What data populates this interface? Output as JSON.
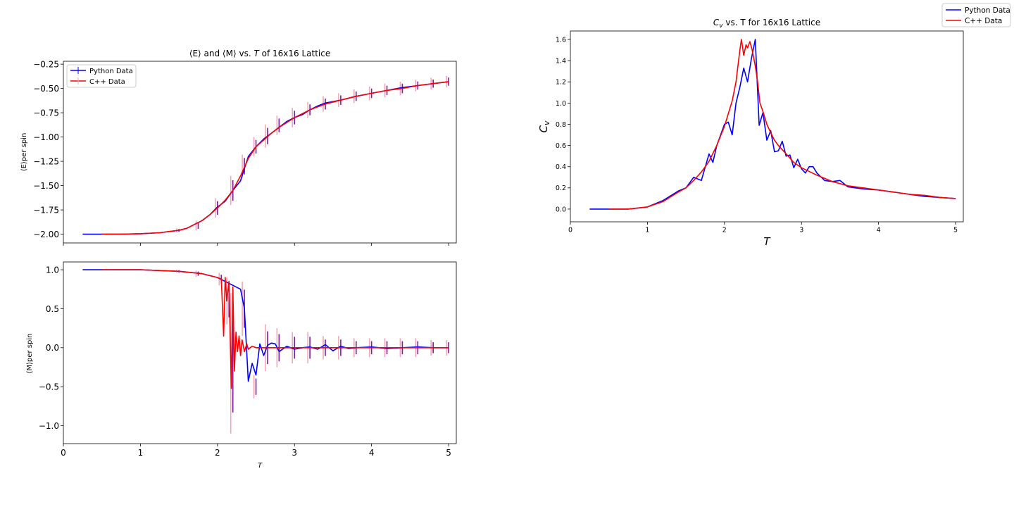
{
  "figure_legend": {
    "entries": [
      {
        "label": "Python Data",
        "color": "#0000ff"
      },
      {
        "label": "C++ Data",
        "color": "#ff0000"
      }
    ]
  },
  "chart_data": [
    {
      "id": "energy",
      "type": "line",
      "title_prefix": "⟨E⟩ and ⟨M⟩ vs. ",
      "title_italic": "T",
      "title_suffix": " of 16x16 Lattice",
      "xlabel": "",
      "ylabel": "⟨E⟩per spin",
      "xlim": [
        0,
        5.1
      ],
      "ylim": [
        -2.09,
        -0.22
      ],
      "xticks": [
        0,
        1,
        2,
        3,
        4,
        5
      ],
      "yticks": [
        -2.0,
        -1.75,
        -1.5,
        -1.25,
        -1.0,
        -0.75,
        -0.5,
        -0.25
      ],
      "ytick_labels": [
        "−2.00",
        "−1.75",
        "−1.50",
        "−1.25",
        "−1.00",
        "−0.75",
        "−0.50",
        "−0.25"
      ],
      "legend": {
        "placement": "upper-left",
        "entries": [
          "Python Data",
          "C++ Data"
        ]
      },
      "series": [
        {
          "name": "Python Data",
          "color": "#0000ff",
          "x": [
            0.25,
            0.5,
            0.75,
            1.0,
            1.25,
            1.5,
            1.6,
            1.7,
            1.8,
            1.9,
            2.0,
            2.1,
            2.2,
            2.3,
            2.4,
            2.5,
            2.6,
            2.7,
            2.8,
            2.9,
            3.0,
            3.1,
            3.2,
            3.3,
            3.4,
            3.6,
            3.8,
            4.0,
            4.2,
            4.4,
            4.6,
            4.8,
            5.0
          ],
          "y": [
            -2.0,
            -2.0,
            -2.0,
            -1.995,
            -1.985,
            -1.96,
            -1.94,
            -1.9,
            -1.86,
            -1.8,
            -1.72,
            -1.66,
            -1.55,
            -1.45,
            -1.2,
            -1.1,
            -1.02,
            -0.96,
            -0.9,
            -0.84,
            -0.8,
            -0.77,
            -0.72,
            -0.68,
            -0.65,
            -0.62,
            -0.58,
            -0.55,
            -0.52,
            -0.49,
            -0.47,
            -0.45,
            -0.43
          ]
        },
        {
          "name": "C++ Data",
          "color": "#ff0000",
          "x": [
            0.5,
            0.75,
            1.0,
            1.25,
            1.5,
            1.6,
            1.7,
            1.8,
            1.9,
            2.0,
            2.1,
            2.2,
            2.3,
            2.4,
            2.5,
            2.6,
            2.7,
            2.8,
            2.9,
            3.0,
            3.1,
            3.2,
            3.3,
            3.4,
            3.6,
            3.8,
            4.0,
            4.2,
            4.4,
            4.6,
            4.8,
            5.0
          ],
          "y": [
            -2.0,
            -2.0,
            -1.995,
            -1.985,
            -1.96,
            -1.94,
            -1.9,
            -1.86,
            -1.8,
            -1.73,
            -1.65,
            -1.55,
            -1.4,
            -1.22,
            -1.1,
            -1.03,
            -0.96,
            -0.9,
            -0.85,
            -0.8,
            -0.76,
            -0.72,
            -0.69,
            -0.66,
            -0.62,
            -0.58,
            -0.55,
            -0.52,
            -0.5,
            -0.47,
            -0.45,
            -0.43
          ]
        }
      ],
      "error_bars": {
        "x": [
          1.5,
          1.75,
          2.0,
          2.2,
          2.35,
          2.5,
          2.65,
          2.8,
          3.0,
          3.2,
          3.4,
          3.6,
          3.8,
          4.0,
          4.2,
          4.4,
          4.6,
          4.8,
          5.0
        ],
        "y": [
          -1.96,
          -1.91,
          -1.73,
          -1.55,
          -1.3,
          -1.1,
          -0.99,
          -0.88,
          -0.8,
          -0.72,
          -0.66,
          -0.62,
          -0.58,
          -0.55,
          -0.52,
          -0.5,
          -0.47,
          -0.45,
          -0.43
        ],
        "err": [
          0.02,
          0.05,
          0.1,
          0.15,
          0.12,
          0.1,
          0.12,
          0.1,
          0.1,
          0.08,
          0.08,
          0.07,
          0.07,
          0.07,
          0.07,
          0.07,
          0.06,
          0.06,
          0.06
        ]
      }
    },
    {
      "id": "magnetization",
      "type": "line",
      "title": "",
      "xlabel": "T",
      "ylabel": "⟨M⟩per spin",
      "xlim": [
        0,
        5.1
      ],
      "ylim": [
        -1.23,
        1.1
      ],
      "xticks": [
        0,
        1,
        2,
        3,
        4,
        5
      ],
      "yticks": [
        -1.0,
        -0.5,
        0.0,
        0.5,
        1.0
      ],
      "ytick_labels": [
        "−1.0",
        "−0.5",
        "0.0",
        "0.5",
        "1.0"
      ],
      "series": [
        {
          "name": "Python Data",
          "color": "#0000ff",
          "x": [
            0.25,
            0.5,
            1.0,
            1.5,
            1.8,
            2.0,
            2.1,
            2.2,
            2.3,
            2.35,
            2.4,
            2.45,
            2.5,
            2.55,
            2.6,
            2.65,
            2.7,
            2.75,
            2.8,
            2.9,
            3.0,
            3.1,
            3.2,
            3.3,
            3.4,
            3.5,
            3.6,
            3.7,
            3.8,
            4.0,
            4.2,
            4.4,
            4.6,
            4.8,
            5.0
          ],
          "y": [
            1.0,
            1.0,
            1.0,
            0.98,
            0.95,
            0.9,
            0.85,
            0.8,
            0.75,
            0.5,
            -0.43,
            -0.2,
            -0.35,
            0.05,
            -0.1,
            0.03,
            0.06,
            0.05,
            -0.05,
            0.02,
            -0.02,
            0.0,
            0.01,
            -0.02,
            0.04,
            -0.04,
            0.02,
            -0.01,
            0.0,
            0.01,
            -0.01,
            0.0,
            0.01,
            0.0,
            0.0
          ]
        },
        {
          "name": "C++ Data",
          "color": "#ff0000",
          "x": [
            0.5,
            1.0,
            1.5,
            1.8,
            2.0,
            2.05,
            2.08,
            2.1,
            2.12,
            2.15,
            2.18,
            2.2,
            2.22,
            2.24,
            2.26,
            2.28,
            2.3,
            2.32,
            2.35,
            2.38,
            2.4,
            2.45,
            2.5,
            2.6,
            2.7,
            2.8,
            3.0,
            3.2,
            3.5,
            4.0,
            4.5,
            5.0
          ],
          "y": [
            1.0,
            1.0,
            0.98,
            0.95,
            0.9,
            0.88,
            0.15,
            0.9,
            0.6,
            0.85,
            -0.52,
            0.78,
            -0.3,
            0.2,
            -0.05,
            0.15,
            -0.1,
            0.1,
            -0.05,
            0.05,
            -0.02,
            0.02,
            0.0,
            0.0,
            0.0,
            0.0,
            0.0,
            0.0,
            0.0,
            0.0,
            0.0,
            0.0
          ]
        }
      ],
      "error_bars": {
        "x": [
          1.5,
          1.75,
          2.05,
          2.15,
          2.2,
          2.35,
          2.5,
          2.65,
          2.8,
          3.0,
          3.2,
          3.4,
          3.6,
          3.8,
          4.0,
          4.2,
          4.4,
          4.6,
          4.8,
          5.0
        ],
        "y": [
          0.98,
          0.95,
          0.88,
          0.6,
          -0.2,
          0.5,
          -0.5,
          0.0,
          0.0,
          0.0,
          0.0,
          0.0,
          0.0,
          0.0,
          0.0,
          0.0,
          0.0,
          0.0,
          0.0,
          0.0
        ],
        "err": [
          0.02,
          0.04,
          0.08,
          0.3,
          0.9,
          0.35,
          0.15,
          0.3,
          0.25,
          0.2,
          0.2,
          0.15,
          0.15,
          0.12,
          0.12,
          0.12,
          0.12,
          0.12,
          0.1,
          0.1
        ]
      }
    },
    {
      "id": "heat-capacity",
      "type": "line",
      "title_prefix": "",
      "title_italic": "C_v",
      "title_suffix": " vs. T for 16x16 Lattice",
      "xlabel": "T",
      "ylabel": "C_v",
      "xlim": [
        0,
        5.1
      ],
      "ylim": [
        -0.12,
        1.68
      ],
      "xticks": [
        0,
        1,
        2,
        3,
        4,
        5
      ],
      "yticks": [
        0.0,
        0.2,
        0.4,
        0.6,
        0.8,
        1.0,
        1.2,
        1.4,
        1.6
      ],
      "ytick_labels": [
        "0.0",
        "0.2",
        "0.4",
        "0.6",
        "0.8",
        "1.0",
        "1.2",
        "1.4",
        "1.6"
      ],
      "series": [
        {
          "name": "Python Data",
          "color": "#0000ff",
          "x": [
            0.25,
            0.5,
            0.75,
            1.0,
            1.2,
            1.4,
            1.5,
            1.6,
            1.7,
            1.8,
            1.85,
            1.9,
            1.95,
            2.0,
            2.05,
            2.1,
            2.15,
            2.2,
            2.25,
            2.3,
            2.35,
            2.4,
            2.45,
            2.5,
            2.55,
            2.6,
            2.65,
            2.7,
            2.75,
            2.8,
            2.85,
            2.9,
            2.95,
            3.0,
            3.05,
            3.1,
            3.15,
            3.2,
            3.3,
            3.4,
            3.5,
            3.6,
            3.8,
            4.0,
            4.2,
            4.4,
            4.6,
            4.8,
            5.0
          ],
          "y": [
            0.0,
            0.0,
            0.0,
            0.02,
            0.08,
            0.17,
            0.2,
            0.3,
            0.27,
            0.52,
            0.44,
            0.6,
            0.7,
            0.8,
            0.82,
            0.7,
            1.0,
            1.15,
            1.33,
            1.2,
            1.42,
            1.6,
            0.79,
            0.91,
            0.65,
            0.74,
            0.54,
            0.55,
            0.64,
            0.5,
            0.51,
            0.39,
            0.47,
            0.38,
            0.34,
            0.4,
            0.4,
            0.34,
            0.27,
            0.26,
            0.27,
            0.21,
            0.19,
            0.18,
            0.16,
            0.14,
            0.12,
            0.11,
            0.1
          ]
        },
        {
          "name": "C++ Data",
          "color": "#ff0000",
          "x": [
            0.5,
            0.75,
            1.0,
            1.2,
            1.4,
            1.5,
            1.6,
            1.7,
            1.8,
            1.9,
            2.0,
            2.05,
            2.1,
            2.15,
            2.2,
            2.22,
            2.25,
            2.28,
            2.3,
            2.33,
            2.36,
            2.4,
            2.43,
            2.46,
            2.5,
            2.55,
            2.6,
            2.65,
            2.7,
            2.8,
            2.9,
            3.0,
            3.2,
            3.4,
            3.6,
            3.8,
            4.0,
            4.2,
            4.4,
            4.6,
            4.8,
            5.0
          ],
          "y": [
            0.0,
            0.0,
            0.02,
            0.07,
            0.16,
            0.2,
            0.27,
            0.35,
            0.45,
            0.6,
            0.78,
            0.9,
            1.02,
            1.2,
            1.5,
            1.6,
            1.45,
            1.55,
            1.52,
            1.58,
            1.5,
            1.35,
            1.2,
            1.0,
            0.92,
            0.8,
            0.72,
            0.65,
            0.6,
            0.52,
            0.44,
            0.39,
            0.32,
            0.26,
            0.22,
            0.2,
            0.18,
            0.16,
            0.14,
            0.13,
            0.11,
            0.1
          ]
        }
      ]
    }
  ]
}
